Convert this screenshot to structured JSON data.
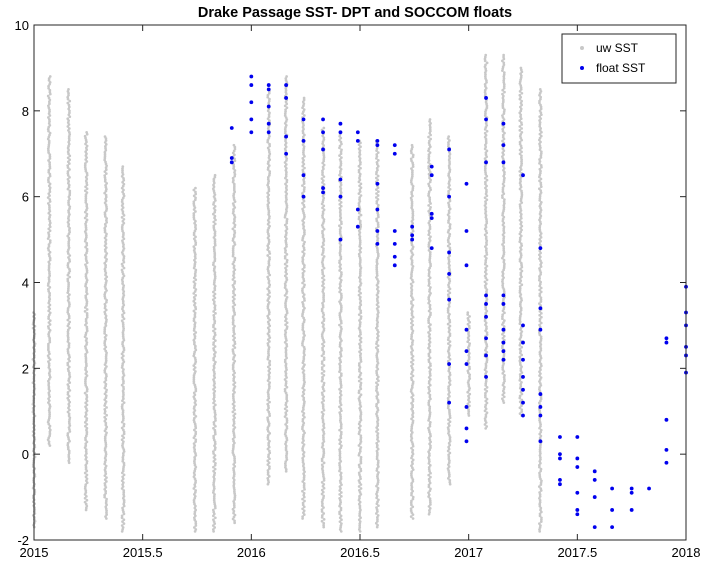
{
  "chart_data": {
    "type": "scatter",
    "title": "Drake Passage SST- DPT and SOCCOM floats",
    "xlabel": "",
    "ylabel": "",
    "xlim": [
      2015,
      2018
    ],
    "ylim": [
      -2,
      10
    ],
    "x_ticks": [
      2015,
      2015.5,
      2016,
      2016.5,
      2017,
      2017.5,
      2018
    ],
    "x_tick_labels": [
      "2015",
      "2015.5",
      "2016",
      "2016.5",
      "2017",
      "2017.5",
      "2018"
    ],
    "y_ticks": [
      -2,
      0,
      2,
      4,
      6,
      8,
      10
    ],
    "y_tick_labels": [
      "-2",
      "0",
      "2",
      "4",
      "6",
      "8",
      "10"
    ],
    "grid": false,
    "legend_position": "top-right",
    "series": [
      {
        "name": "uw SST",
        "color": "#c8c8c8",
        "marker": "dot",
        "transects": [
          {
            "x": 2015.0,
            "ymin": -1.7,
            "ymax": 3.3
          },
          {
            "x": 2015.07,
            "ymin": 0.2,
            "ymax": 8.8
          },
          {
            "x": 2015.16,
            "ymin": -0.2,
            "ymax": 8.5
          },
          {
            "x": 2015.24,
            "ymin": -1.3,
            "ymax": 7.5
          },
          {
            "x": 2015.33,
            "ymin": -1.5,
            "ymax": 7.4
          },
          {
            "x": 2015.41,
            "ymin": -1.8,
            "ymax": 6.7
          },
          {
            "x": 2015.74,
            "ymin": -1.8,
            "ymax": 6.2
          },
          {
            "x": 2015.83,
            "ymin": -1.8,
            "ymax": 6.5
          },
          {
            "x": 2015.92,
            "ymin": -1.6,
            "ymax": 7.2
          },
          {
            "x": 2016.08,
            "ymin": -0.7,
            "ymax": 8.5
          },
          {
            "x": 2016.16,
            "ymin": -0.4,
            "ymax": 8.8
          },
          {
            "x": 2016.24,
            "ymin": -1.5,
            "ymax": 8.3
          },
          {
            "x": 2016.33,
            "ymin": -1.7,
            "ymax": 7.6
          },
          {
            "x": 2016.41,
            "ymin": -1.8,
            "ymax": 7.5
          },
          {
            "x": 2016.5,
            "ymin": -1.8,
            "ymax": 7.3
          },
          {
            "x": 2016.58,
            "ymin": -1.7,
            "ymax": 7.3
          },
          {
            "x": 2016.74,
            "ymin": -1.5,
            "ymax": 7.2
          },
          {
            "x": 2016.82,
            "ymin": -1.4,
            "ymax": 7.8
          },
          {
            "x": 2016.91,
            "ymin": -0.7,
            "ymax": 7.4
          },
          {
            "x": 2017.0,
            "ymin": 0.9,
            "ymax": 3.3
          },
          {
            "x": 2017.08,
            "ymin": 0.6,
            "ymax": 9.3
          },
          {
            "x": 2017.16,
            "ymin": 1.2,
            "ymax": 9.3
          },
          {
            "x": 2017.24,
            "ymin": 0.9,
            "ymax": 9.0
          },
          {
            "x": 2017.33,
            "ymin": -1.8,
            "ymax": 8.5
          }
        ]
      },
      {
        "name": "float SST",
        "color": "#0000ee",
        "marker": "dot",
        "points": [
          [
            2015.91,
            7.6
          ],
          [
            2015.91,
            6.9
          ],
          [
            2015.91,
            6.8
          ],
          [
            2016.0,
            8.8
          ],
          [
            2016.0,
            8.6
          ],
          [
            2016.0,
            8.2
          ],
          [
            2016.0,
            7.8
          ],
          [
            2016.0,
            7.5
          ],
          [
            2016.08,
            8.6
          ],
          [
            2016.08,
            8.5
          ],
          [
            2016.08,
            8.1
          ],
          [
            2016.08,
            7.7
          ],
          [
            2016.08,
            7.5
          ],
          [
            2016.16,
            8.6
          ],
          [
            2016.16,
            8.3
          ],
          [
            2016.16,
            7.4
          ],
          [
            2016.16,
            7.0
          ],
          [
            2016.24,
            7.8
          ],
          [
            2016.24,
            7.3
          ],
          [
            2016.24,
            6.5
          ],
          [
            2016.24,
            6.0
          ],
          [
            2016.33,
            7.8
          ],
          [
            2016.33,
            7.5
          ],
          [
            2016.33,
            7.1
          ],
          [
            2016.33,
            6.2
          ],
          [
            2016.33,
            6.1
          ],
          [
            2016.41,
            7.7
          ],
          [
            2016.41,
            7.5
          ],
          [
            2016.41,
            6.4
          ],
          [
            2016.41,
            6.0
          ],
          [
            2016.41,
            5.0
          ],
          [
            2016.49,
            7.5
          ],
          [
            2016.49,
            7.3
          ],
          [
            2016.49,
            5.7
          ],
          [
            2016.49,
            5.3
          ],
          [
            2016.58,
            7.3
          ],
          [
            2016.58,
            7.2
          ],
          [
            2016.58,
            6.3
          ],
          [
            2016.58,
            5.7
          ],
          [
            2016.58,
            5.2
          ],
          [
            2016.58,
            4.9
          ],
          [
            2016.66,
            7.2
          ],
          [
            2016.66,
            7.0
          ],
          [
            2016.66,
            5.2
          ],
          [
            2016.66,
            4.9
          ],
          [
            2016.66,
            4.6
          ],
          [
            2016.66,
            4.4
          ],
          [
            2016.74,
            5.3
          ],
          [
            2016.74,
            5.1
          ],
          [
            2016.74,
            5.0
          ],
          [
            2016.83,
            6.7
          ],
          [
            2016.83,
            6.5
          ],
          [
            2016.83,
            5.6
          ],
          [
            2016.83,
            5.5
          ],
          [
            2016.83,
            4.8
          ],
          [
            2016.91,
            7.1
          ],
          [
            2016.91,
            6.0
          ],
          [
            2016.91,
            4.7
          ],
          [
            2016.91,
            4.2
          ],
          [
            2016.91,
            3.6
          ],
          [
            2016.91,
            2.1
          ],
          [
            2016.91,
            1.2
          ],
          [
            2016.99,
            6.3
          ],
          [
            2016.99,
            5.2
          ],
          [
            2016.99,
            4.4
          ],
          [
            2016.99,
            2.9
          ],
          [
            2016.99,
            2.4
          ],
          [
            2016.99,
            2.1
          ],
          [
            2016.99,
            1.1
          ],
          [
            2016.99,
            0.6
          ],
          [
            2016.99,
            0.3
          ],
          [
            2017.08,
            8.3
          ],
          [
            2017.08,
            7.8
          ],
          [
            2017.08,
            6.8
          ],
          [
            2017.08,
            3.7
          ],
          [
            2017.08,
            3.5
          ],
          [
            2017.08,
            3.2
          ],
          [
            2017.08,
            2.7
          ],
          [
            2017.08,
            2.3
          ],
          [
            2017.08,
            1.8
          ],
          [
            2017.16,
            7.7
          ],
          [
            2017.16,
            7.2
          ],
          [
            2017.16,
            6.8
          ],
          [
            2017.16,
            3.7
          ],
          [
            2017.16,
            3.5
          ],
          [
            2017.16,
            2.9
          ],
          [
            2017.16,
            2.6
          ],
          [
            2017.16,
            2.4
          ],
          [
            2017.16,
            2.2
          ],
          [
            2017.25,
            6.5
          ],
          [
            2017.25,
            3.0
          ],
          [
            2017.25,
            2.6
          ],
          [
            2017.25,
            2.2
          ],
          [
            2017.25,
            1.8
          ],
          [
            2017.25,
            1.5
          ],
          [
            2017.25,
            1.2
          ],
          [
            2017.25,
            0.9
          ],
          [
            2017.33,
            4.8
          ],
          [
            2017.33,
            3.4
          ],
          [
            2017.33,
            2.9
          ],
          [
            2017.33,
            1.4
          ],
          [
            2017.33,
            1.1
          ],
          [
            2017.33,
            0.9
          ],
          [
            2017.33,
            0.3
          ],
          [
            2017.42,
            0.4
          ],
          [
            2017.42,
            0.0
          ],
          [
            2017.42,
            -0.1
          ],
          [
            2017.42,
            -0.6
          ],
          [
            2017.42,
            -0.7
          ],
          [
            2017.5,
            0.4
          ],
          [
            2017.5,
            -0.1
          ],
          [
            2017.5,
            -0.3
          ],
          [
            2017.5,
            -0.9
          ],
          [
            2017.5,
            -1.3
          ],
          [
            2017.5,
            -1.4
          ],
          [
            2017.58,
            -0.4
          ],
          [
            2017.58,
            -0.6
          ],
          [
            2017.58,
            -1.0
          ],
          [
            2017.58,
            -1.7
          ],
          [
            2017.66,
            -0.8
          ],
          [
            2017.66,
            -1.3
          ],
          [
            2017.66,
            -1.7
          ],
          [
            2017.75,
            -0.8
          ],
          [
            2017.75,
            -0.9
          ],
          [
            2017.75,
            -1.3
          ],
          [
            2017.83,
            -0.8
          ],
          [
            2017.91,
            2.7
          ],
          [
            2017.91,
            2.6
          ],
          [
            2017.91,
            0.8
          ],
          [
            2017.91,
            0.1
          ],
          [
            2017.91,
            -0.2
          ],
          [
            2018.0,
            3.9
          ],
          [
            2018.0,
            3.3
          ],
          [
            2018.0,
            3.0
          ],
          [
            2018.0,
            2.5
          ],
          [
            2018.0,
            2.3
          ],
          [
            2018.0,
            1.9
          ]
        ]
      }
    ]
  }
}
